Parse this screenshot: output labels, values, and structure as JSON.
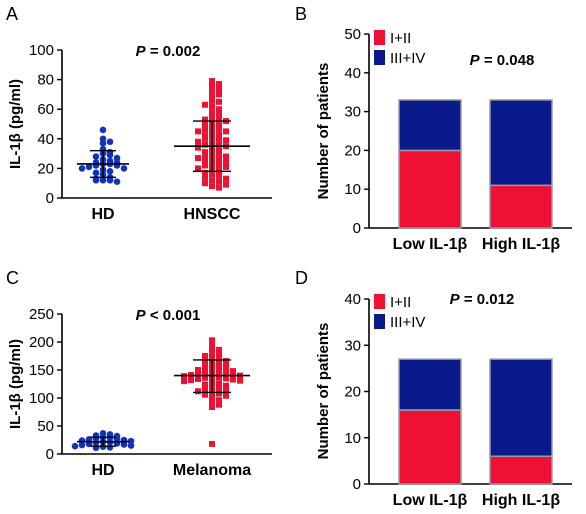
{
  "colors": {
    "blue": "#1133bb",
    "red": "#ee1133",
    "navy": "#0a1a8a",
    "bar_red": "#ee1133",
    "median": "#000000"
  },
  "chart_data": [
    {
      "panel": "A",
      "type": "scatter",
      "ylabel": "IL-1β  (pg/ml)",
      "ylim": [
        0,
        100
      ],
      "yticks": [
        "0",
        "20",
        "40",
        "60",
        "80",
        "100"
      ],
      "annotation": {
        "italic": "P",
        "rest": " = 0.002"
      },
      "categories": [
        "HD",
        "HNSCC"
      ],
      "series": [
        {
          "category": "HD",
          "color": "blue",
          "mean": 23,
          "sd_low": 14,
          "sd_high": 32,
          "values": [
            46,
            40,
            38,
            37,
            33,
            31,
            30,
            29,
            28,
            27,
            26,
            25,
            24,
            24,
            23,
            23,
            22,
            22,
            21,
            20,
            20,
            19,
            18,
            17,
            16,
            14,
            13,
            12,
            12,
            12,
            11
          ]
        },
        {
          "category": "HNSCC",
          "color": "red",
          "mean": 35,
          "sd_low": 18,
          "sd_high": 52,
          "values": [
            79,
            77,
            75,
            74,
            72,
            70,
            68,
            66,
            65,
            63,
            62,
            60,
            58,
            57,
            55,
            54,
            53,
            52,
            51,
            50,
            49,
            48,
            47,
            46,
            45,
            45,
            44,
            43,
            42,
            41,
            40,
            40,
            39,
            38,
            37,
            36,
            36,
            35,
            34,
            33,
            32,
            31,
            30,
            30,
            29,
            28,
            27,
            26,
            26,
            25,
            24,
            23,
            22,
            22,
            21,
            20,
            19,
            18,
            17,
            16,
            15,
            14,
            13,
            12,
            11,
            10,
            9,
            8,
            7
          ]
        }
      ]
    },
    {
      "panel": "B",
      "type": "bar",
      "ylabel": "Number of  patients",
      "ylim": [
        0,
        50
      ],
      "yticks": [
        "0",
        "10",
        "20",
        "30",
        "40",
        "50"
      ],
      "annotation": {
        "italic": "P",
        "rest": " = 0.048"
      },
      "categories": [
        "Low IL-1β",
        "High IL-1β"
      ],
      "series": [
        {
          "name": "I+II",
          "values": [
            20,
            11
          ],
          "color": "bar_red"
        },
        {
          "name": "III+IV",
          "values": [
            13,
            22
          ],
          "color": "navy"
        }
      ]
    },
    {
      "panel": "C",
      "type": "scatter",
      "ylabel": "IL-1β  (pg/ml)",
      "ylim": [
        0,
        250
      ],
      "yticks": [
        "0",
        "50",
        "100",
        "150",
        "200",
        "250"
      ],
      "annotation": {
        "italic": "P",
        "rest": " < 0.001"
      },
      "categories": [
        "HD",
        "Melanoma"
      ],
      "series": [
        {
          "category": "HD",
          "color": "blue",
          "mean": 22,
          "sd_low": 14,
          "sd_high": 30,
          "values": [
            37,
            35,
            33,
            32,
            30,
            29,
            28,
            27,
            26,
            25,
            24,
            23,
            22,
            21,
            20,
            19,
            18,
            17,
            16,
            15,
            14,
            13,
            12,
            11
          ]
        },
        {
          "category": "Melanoma",
          "color": "red",
          "mean": 140,
          "sd_low": 110,
          "sd_high": 168,
          "values": [
            203,
            196,
            190,
            186,
            182,
            178,
            175,
            172,
            170,
            168,
            166,
            164,
            162,
            160,
            158,
            156,
            155,
            153,
            152,
            150,
            148,
            147,
            146,
            145,
            144,
            143,
            142,
            141,
            140,
            139,
            138,
            137,
            136,
            135,
            134,
            133,
            132,
            131,
            130,
            128,
            126,
            124,
            122,
            120,
            118,
            116,
            114,
            112,
            110,
            108,
            106,
            104,
            100,
            96,
            92,
            88,
            84,
            18
          ]
        }
      ]
    },
    {
      "panel": "D",
      "type": "bar",
      "ylabel": "Number of  patients",
      "ylim": [
        0,
        40
      ],
      "yticks": [
        "0",
        "10",
        "20",
        "30",
        "40"
      ],
      "annotation": {
        "italic": "P",
        "rest": " = 0.012"
      },
      "categories": [
        "Low IL-1β",
        "High IL-1β"
      ],
      "series": [
        {
          "name": "I+II",
          "values": [
            16,
            6
          ],
          "color": "bar_red"
        },
        {
          "name": "III+IV",
          "values": [
            11,
            21
          ],
          "color": "navy"
        }
      ]
    }
  ],
  "panel_letters": [
    "A",
    "B",
    "C",
    "D"
  ]
}
